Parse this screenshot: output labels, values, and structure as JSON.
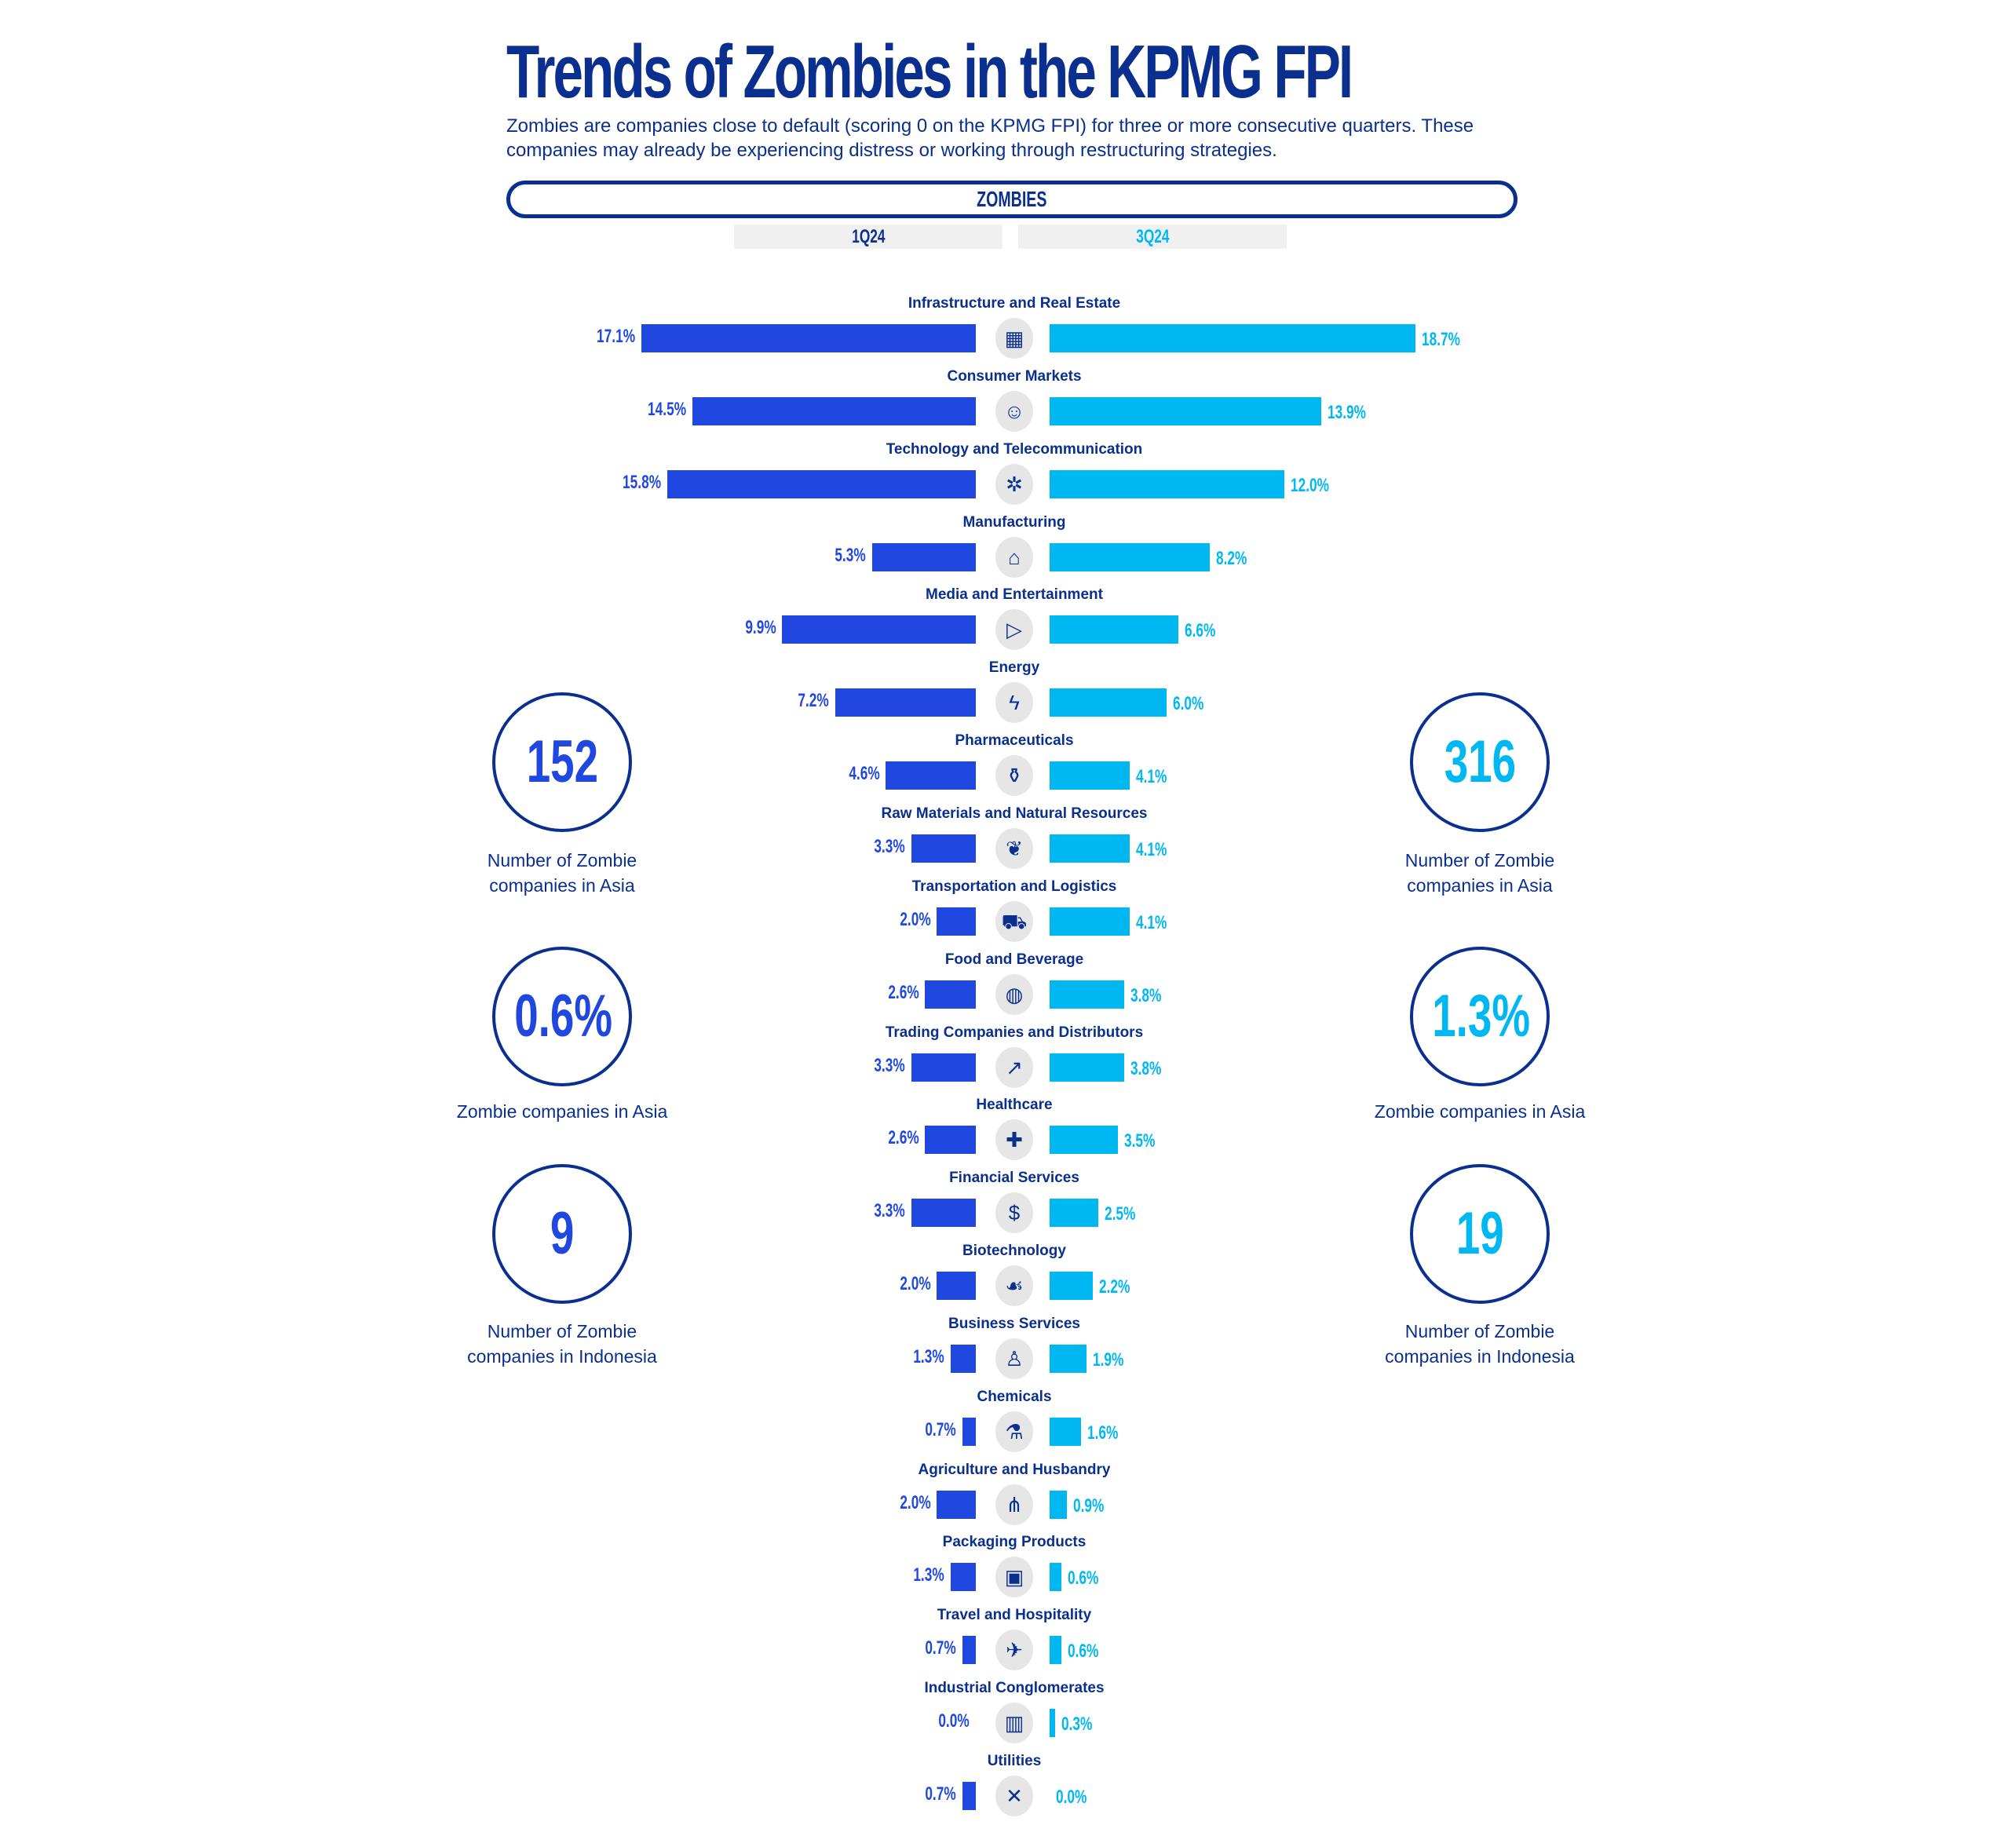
{
  "title": "Trends of Zombies in the KPMG FPI",
  "subtitle": "Zombies are companies close to default (scoring 0 on the KPMG FPI) for three or more consecutive quarters. These companies may already be experiencing distress or working through restructuring strategies.",
  "section_label": "ZOMBIES",
  "colors": {
    "q1": "#2048e0",
    "q3": "#00b8f1",
    "navy": "#0a2f8f"
  },
  "stats_left": [
    {
      "value": "152",
      "caption": "Number of Zombie companies in Asia"
    },
    {
      "value": "0.6%",
      "caption": "Zombie companies in Asia"
    },
    {
      "value": "9",
      "caption": "Number of Zombie companies in Indonesia"
    }
  ],
  "stats_right": [
    {
      "value": "316",
      "caption": "Number of Zombie companies in Asia"
    },
    {
      "value": "1.3%",
      "caption": "Zombie companies in Asia"
    },
    {
      "value": "19",
      "caption": "Number of Zombie companies in Indonesia"
    }
  ],
  "chart_data": {
    "type": "bar",
    "orientation": "horizontal-butterfly",
    "series": [
      {
        "name": "1Q24",
        "values": [
          17.1,
          14.5,
          15.8,
          5.3,
          9.9,
          7.2,
          4.6,
          3.3,
          2.0,
          2.6,
          3.3,
          2.6,
          3.3,
          2.0,
          1.3,
          0.7,
          2.0,
          1.3,
          0.7,
          0.0,
          0.7
        ],
        "labels": [
          "17.1%",
          "14.5%",
          "15.8%",
          "5.3%",
          "9.9%",
          "7.2%",
          "4.6%",
          "3.3%",
          "2.0%",
          "2.6%",
          "3.3%",
          "2.6%",
          "3.3%",
          "2.0%",
          "1.3%",
          "0.7%",
          "2.0%",
          "1.3%",
          "0.7%",
          "0.0%",
          "0.7%"
        ]
      },
      {
        "name": "3Q24",
        "values": [
          18.7,
          13.9,
          12.0,
          8.2,
          6.6,
          6.0,
          4.1,
          4.1,
          4.1,
          3.8,
          3.8,
          3.5,
          2.5,
          2.2,
          1.9,
          1.6,
          0.9,
          0.6,
          0.6,
          0.3,
          0.0
        ],
        "labels": [
          "18.7%",
          "13.9%",
          "12.0%",
          "8.2%",
          "6.6%",
          "6.0%",
          "4.1%",
          "4.1%",
          "4.1%",
          "3.8%",
          "3.8%",
          "3.5%",
          "2.5%",
          "2.2%",
          "1.9%",
          "1.6%",
          "0.9%",
          "0.6%",
          "0.6%",
          "0.3%",
          "0.0%"
        ]
      }
    ],
    "categories": [
      "Infrastructure and Real Estate",
      "Consumer Markets",
      "Technology and Telecommunication",
      "Manufacturing",
      "Media and Entertainment",
      "Energy",
      "Pharmaceuticals",
      "Raw Materials and Natural Resources",
      "Transportation and Logistics",
      "Food and Beverage",
      "Trading Companies and Distributors",
      "Healthcare",
      "Financial Services",
      "Biotechnology",
      "Business Services",
      "Chemicals",
      "Agriculture and Husbandry",
      "Packaging Products",
      "Travel and Hospitality",
      "Industrial Conglomerates",
      "Utilities"
    ],
    "icons": [
      "building-icon",
      "person-icon",
      "network-cloud-icon",
      "factory-icon",
      "presentation-icon",
      "lightning-icon",
      "pill-bottle-icon",
      "plant-icon",
      "truck-icon",
      "plate-cutlery-icon",
      "chart-line-icon",
      "medical-cross-icon",
      "money-bag-icon",
      "hand-leaf-icon",
      "worker-icon",
      "flask-icon",
      "wheat-icon",
      "box-icon",
      "globe-plane-icon",
      "office-building-icon",
      "tools-icon"
    ],
    "icon_glyphs": [
      "▦",
      "☺",
      "✲",
      "⌂",
      "▷",
      "ϟ",
      "⚱",
      "❦",
      "⛟",
      "◍",
      "↗",
      "✚",
      "$",
      "☙",
      "♙",
      "⚗",
      "⋔",
      "▣",
      "✈",
      "▥",
      "✕"
    ],
    "unit": "%",
    "xlim": [
      0,
      20
    ]
  }
}
